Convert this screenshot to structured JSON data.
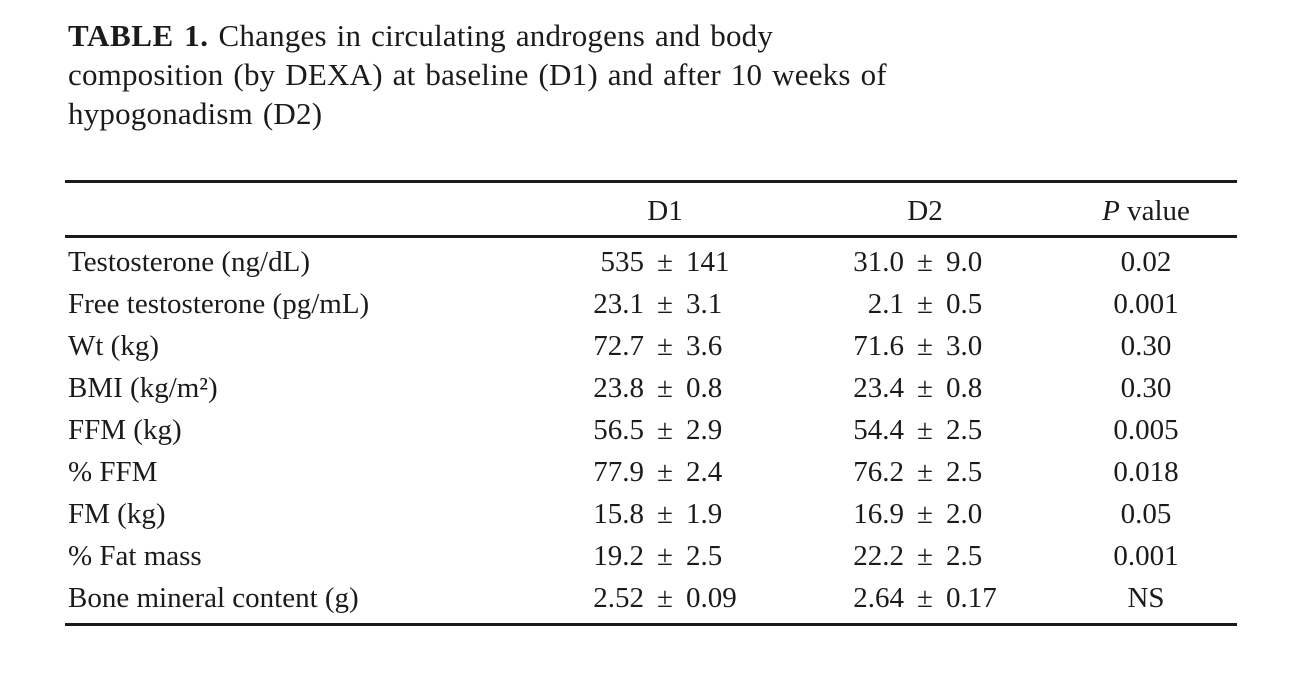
{
  "title": {
    "label": "TABLE 1.",
    "lines": {
      "line1": "Changes in circulating androgens and body",
      "line2": "composition (by DEXA) at baseline (D1) and after 10 weeks of",
      "line3": "hypogonadism (D2)"
    }
  },
  "table": {
    "pm": "±",
    "headers": {
      "col1": "D1",
      "col2": "D2",
      "col3": "P value"
    },
    "rows": [
      {
        "label": "Testosterone (ng/dL)",
        "d1_mean": "535",
        "d1_sd": "141",
        "d2_mean": "31.0",
        "d2_sd": "9.0",
        "p": "0.02"
      },
      {
        "label": "Free testosterone (pg/mL)",
        "d1_mean": "23.1",
        "d1_sd": "3.1",
        "d2_mean": "2.1",
        "d2_sd": "0.5",
        "p": "0.001"
      },
      {
        "label": "Wt (kg)",
        "d1_mean": "72.7",
        "d1_sd": "3.6",
        "d2_mean": "71.6",
        "d2_sd": "3.0",
        "p": "0.30"
      },
      {
        "label": "BMI (kg/m²)",
        "d1_mean": "23.8",
        "d1_sd": "0.8",
        "d2_mean": "23.4",
        "d2_sd": "0.8",
        "p": "0.30"
      },
      {
        "label": "FFM (kg)",
        "d1_mean": "56.5",
        "d1_sd": "2.9",
        "d2_mean": "54.4",
        "d2_sd": "2.5",
        "p": "0.005"
      },
      {
        "label": "% FFM",
        "d1_mean": "77.9",
        "d1_sd": "2.4",
        "d2_mean": "76.2",
        "d2_sd": "2.5",
        "p": "0.018"
      },
      {
        "label": "FM (kg)",
        "d1_mean": "15.8",
        "d1_sd": "1.9",
        "d2_mean": "16.9",
        "d2_sd": "2.0",
        "p": "0.05"
      },
      {
        "label": "% Fat mass",
        "d1_mean": "19.2",
        "d1_sd": "2.5",
        "d2_mean": "22.2",
        "d2_sd": "2.5",
        "p": "0.001"
      },
      {
        "label": "Bone mineral content (g)",
        "d1_mean": "2.52",
        "d1_sd": "0.09",
        "d2_mean": "2.64",
        "d2_sd": "0.17",
        "p": "NS"
      }
    ]
  }
}
